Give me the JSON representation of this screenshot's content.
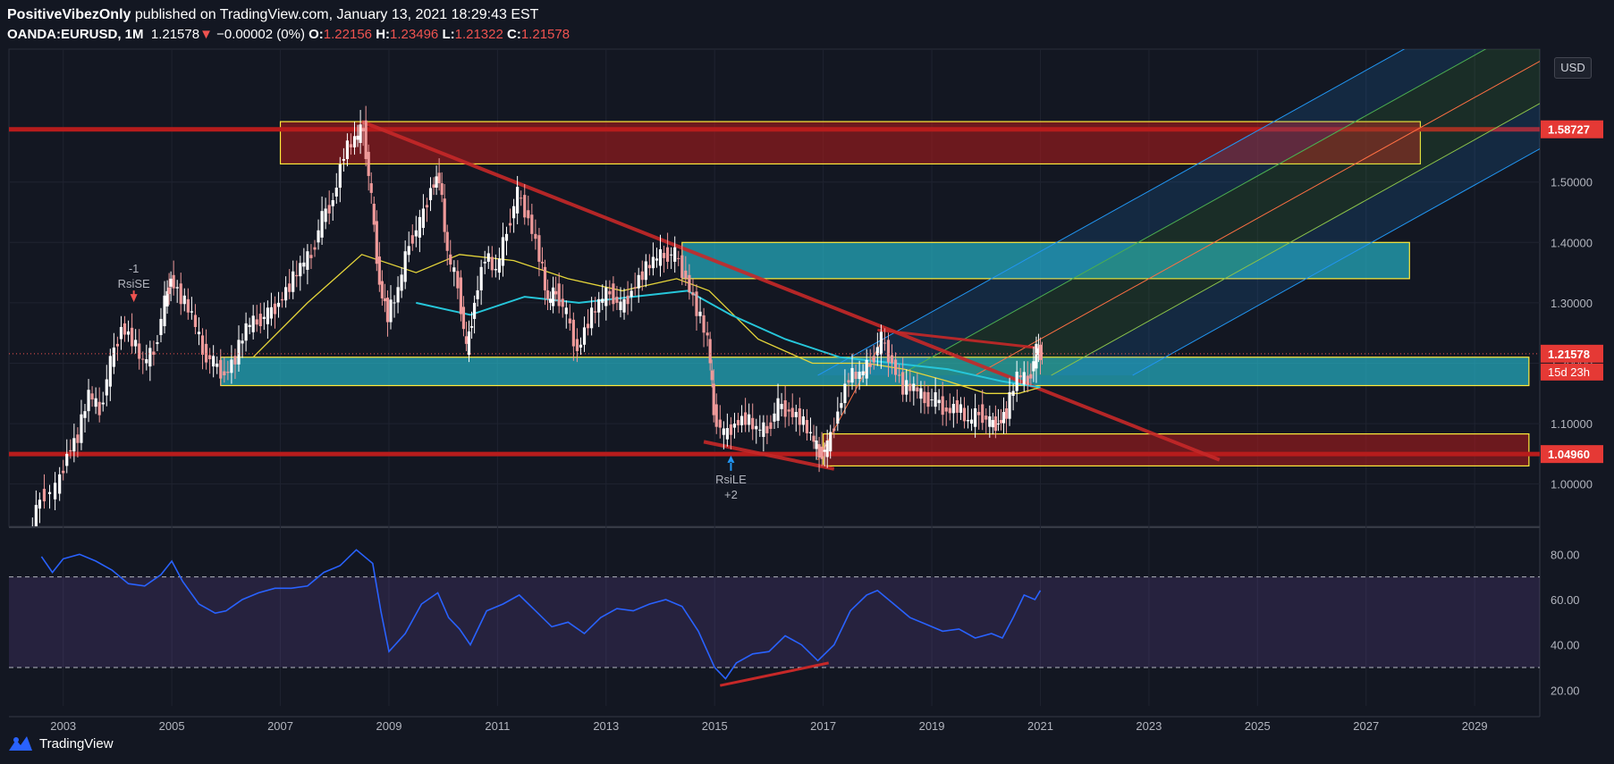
{
  "header": {
    "author": "PositiveVibezOnly",
    "published_text": "published on TradingView.com, January 13, 2021 18:29:43 EST",
    "symbol": "OANDA:EURUSD,",
    "interval": "1M",
    "last": "1.21578",
    "change": "−0.00002 (0%)",
    "o_label": "O:",
    "o": "1.22156",
    "h_label": "H:",
    "h": "1.23496",
    "l_label": "L:",
    "l": "1.21322",
    "c_label": "C:",
    "c": "1.21578"
  },
  "currency": "USD",
  "footer": {
    "brand": "TradingView"
  },
  "colors": {
    "background": "#131722",
    "up_candle": "#ffffff",
    "down_candle": "#ef9a9a",
    "rsi_line": "#2962ff",
    "rsi_band": "#7e57c2",
    "support_red": "#b71c1c",
    "zone_teal": "#26c6da",
    "zone_yellow_border": "#ffeb3b",
    "ma_yellow": "#e5d53a",
    "ma_cyan": "#26c6da"
  },
  "chart_data": {
    "type": "candlestick",
    "symbol": "OANDA:EURUSD",
    "interval": "1M",
    "price_axis": {
      "ticks": [
        "1.50000",
        "1.40000",
        "1.30000",
        "1.20000",
        "1.10000",
        "1.00000"
      ],
      "ylim": [
        0.93,
        1.72
      ],
      "scale": "linear"
    },
    "time_axis": {
      "ticks": [
        "2003",
        "2005",
        "2007",
        "2009",
        "2011",
        "2013",
        "2015",
        "2017",
        "2019",
        "2021",
        "2023",
        "2025",
        "2027",
        "2029"
      ],
      "xlim": [
        2002.0,
        2030.2
      ]
    },
    "price_labels": [
      {
        "value": "1.58727",
        "price": 1.58727
      },
      {
        "value": "1.21578",
        "price": 1.21578,
        "sub": "15d 23h"
      },
      {
        "value": "1.04960",
        "price": 1.0496
      }
    ],
    "close_series": [
      [
        2002.4,
        0.9
      ],
      [
        2002.6,
        0.98
      ],
      [
        2002.9,
        0.99
      ],
      [
        2003.1,
        1.05
      ],
      [
        2003.3,
        1.08
      ],
      [
        2003.5,
        1.15
      ],
      [
        2003.7,
        1.12
      ],
      [
        2003.9,
        1.2
      ],
      [
        2004.1,
        1.26
      ],
      [
        2004.3,
        1.24
      ],
      [
        2004.5,
        1.2
      ],
      [
        2004.7,
        1.22
      ],
      [
        2004.9,
        1.3
      ],
      [
        2005.0,
        1.34
      ],
      [
        2005.2,
        1.31
      ],
      [
        2005.4,
        1.28
      ],
      [
        2005.6,
        1.22
      ],
      [
        2005.8,
        1.2
      ],
      [
        2006.0,
        1.18
      ],
      [
        2006.2,
        1.21
      ],
      [
        2006.4,
        1.26
      ],
      [
        2006.6,
        1.27
      ],
      [
        2006.8,
        1.28
      ],
      [
        2007.0,
        1.3
      ],
      [
        2007.2,
        1.33
      ],
      [
        2007.4,
        1.36
      ],
      [
        2007.6,
        1.38
      ],
      [
        2007.8,
        1.44
      ],
      [
        2008.0,
        1.47
      ],
      [
        2008.2,
        1.55
      ],
      [
        2008.4,
        1.57
      ],
      [
        2008.55,
        1.59
      ],
      [
        2008.7,
        1.47
      ],
      [
        2008.85,
        1.33
      ],
      [
        2009.0,
        1.28
      ],
      [
        2009.2,
        1.32
      ],
      [
        2009.4,
        1.4
      ],
      [
        2009.6,
        1.43
      ],
      [
        2009.8,
        1.49
      ],
      [
        2009.95,
        1.51
      ],
      [
        2010.1,
        1.38
      ],
      [
        2010.3,
        1.33
      ],
      [
        2010.45,
        1.22
      ],
      [
        2010.6,
        1.3
      ],
      [
        2010.8,
        1.38
      ],
      [
        2011.0,
        1.35
      ],
      [
        2011.2,
        1.42
      ],
      [
        2011.4,
        1.48
      ],
      [
        2011.6,
        1.44
      ],
      [
        2011.8,
        1.38
      ],
      [
        2011.95,
        1.3
      ],
      [
        2012.1,
        1.32
      ],
      [
        2012.3,
        1.28
      ],
      [
        2012.5,
        1.22
      ],
      [
        2012.7,
        1.27
      ],
      [
        2012.9,
        1.3
      ],
      [
        2013.1,
        1.32
      ],
      [
        2013.3,
        1.29
      ],
      [
        2013.5,
        1.32
      ],
      [
        2013.7,
        1.35
      ],
      [
        2013.9,
        1.37
      ],
      [
        2014.1,
        1.38
      ],
      [
        2014.3,
        1.38
      ],
      [
        2014.5,
        1.34
      ],
      [
        2014.7,
        1.29
      ],
      [
        2014.9,
        1.24
      ],
      [
        2015.0,
        1.12
      ],
      [
        2015.2,
        1.08
      ],
      [
        2015.4,
        1.1
      ],
      [
        2015.6,
        1.11
      ],
      [
        2015.8,
        1.09
      ],
      [
        2016.0,
        1.09
      ],
      [
        2016.2,
        1.13
      ],
      [
        2016.4,
        1.12
      ],
      [
        2016.6,
        1.11
      ],
      [
        2016.8,
        1.08
      ],
      [
        2016.95,
        1.05
      ],
      [
        2017.1,
        1.06
      ],
      [
        2017.3,
        1.12
      ],
      [
        2017.5,
        1.18
      ],
      [
        2017.7,
        1.18
      ],
      [
        2017.9,
        1.2
      ],
      [
        2018.1,
        1.24
      ],
      [
        2018.3,
        1.2
      ],
      [
        2018.5,
        1.16
      ],
      [
        2018.7,
        1.16
      ],
      [
        2018.9,
        1.14
      ],
      [
        2019.1,
        1.14
      ],
      [
        2019.3,
        1.12
      ],
      [
        2019.5,
        1.13
      ],
      [
        2019.7,
        1.1
      ],
      [
        2019.9,
        1.12
      ],
      [
        2020.1,
        1.1
      ],
      [
        2020.25,
        1.1
      ],
      [
        2020.4,
        1.12
      ],
      [
        2020.6,
        1.18
      ],
      [
        2020.8,
        1.17
      ],
      [
        2020.95,
        1.22
      ],
      [
        2021.05,
        1.216
      ]
    ],
    "moving_averages": [
      {
        "color": "yellow",
        "points": [
          [
            2006.5,
            1.21
          ],
          [
            2007.5,
            1.3
          ],
          [
            2008.5,
            1.38
          ],
          [
            2009.5,
            1.35
          ],
          [
            2010.3,
            1.38
          ],
          [
            2011.3,
            1.37
          ],
          [
            2012.3,
            1.34
          ],
          [
            2013.3,
            1.32
          ],
          [
            2014.3,
            1.34
          ],
          [
            2014.9,
            1.32
          ],
          [
            2015.8,
            1.24
          ],
          [
            2016.8,
            1.2
          ],
          [
            2017.8,
            1.2
          ],
          [
            2018.5,
            1.19
          ],
          [
            2019.3,
            1.17
          ],
          [
            2020.0,
            1.15
          ],
          [
            2020.6,
            1.15
          ],
          [
            2021.0,
            1.16
          ]
        ]
      },
      {
        "color": "cyan",
        "points": [
          [
            2009.5,
            1.3
          ],
          [
            2010.5,
            1.28
          ],
          [
            2011.5,
            1.31
          ],
          [
            2012.5,
            1.3
          ],
          [
            2013.5,
            1.31
          ],
          [
            2014.5,
            1.32
          ],
          [
            2015.3,
            1.28
          ],
          [
            2016.3,
            1.24
          ],
          [
            2017.3,
            1.21
          ],
          [
            2018.3,
            1.2
          ],
          [
            2019.3,
            1.19
          ],
          [
            2020.3,
            1.17
          ],
          [
            2021.0,
            1.16
          ]
        ]
      }
    ],
    "zones": [
      {
        "kind": "resistance",
        "y_range": [
          1.53,
          1.6
        ],
        "x_range": [
          2007.0,
          2028.0
        ]
      },
      {
        "kind": "range",
        "y_range": [
          1.34,
          1.4
        ],
        "x_range": [
          2014.4,
          2027.8
        ]
      },
      {
        "kind": "support",
        "y_range": [
          1.163,
          1.21
        ],
        "x_range": [
          2005.9,
          2030.0
        ]
      },
      {
        "kind": "support",
        "y_range": [
          1.03,
          1.083
        ],
        "x_range": [
          2017.0,
          2030.0
        ]
      }
    ],
    "horizontal_levels": [
      1.58727,
      1.0496
    ],
    "annotations": [
      {
        "text_top": "-1",
        "text_bottom": "RsiSE",
        "x": 2004.3,
        "price": 1.35
      },
      {
        "text_top": "RsiLE",
        "text_bottom": "+2",
        "x": 2015.3,
        "price": 1.05
      }
    ],
    "rsi": {
      "ticks": [
        "80.00",
        "60.00",
        "40.00",
        "20.00"
      ],
      "ylim": [
        13,
        90
      ],
      "overbought": 70,
      "oversold": 30,
      "series": [
        [
          2002.6,
          79
        ],
        [
          2002.8,
          72
        ],
        [
          2003.0,
          78
        ],
        [
          2003.3,
          80
        ],
        [
          2003.6,
          77
        ],
        [
          2003.9,
          73
        ],
        [
          2004.2,
          67
        ],
        [
          2004.5,
          66
        ],
        [
          2004.8,
          71
        ],
        [
          2005.0,
          77
        ],
        [
          2005.2,
          68
        ],
        [
          2005.5,
          58
        ],
        [
          2005.8,
          54
        ],
        [
          2006.0,
          55
        ],
        [
          2006.3,
          60
        ],
        [
          2006.6,
          63
        ],
        [
          2006.9,
          65
        ],
        [
          2007.2,
          65
        ],
        [
          2007.5,
          66
        ],
        [
          2007.8,
          72
        ],
        [
          2008.1,
          75
        ],
        [
          2008.4,
          82
        ],
        [
          2008.7,
          76
        ],
        [
          2008.85,
          55
        ],
        [
          2009.0,
          37
        ],
        [
          2009.3,
          45
        ],
        [
          2009.6,
          58
        ],
        [
          2009.9,
          63
        ],
        [
          2010.1,
          52
        ],
        [
          2010.3,
          47
        ],
        [
          2010.5,
          40
        ],
        [
          2010.8,
          55
        ],
        [
          2011.1,
          58
        ],
        [
          2011.4,
          62
        ],
        [
          2011.7,
          55
        ],
        [
          2012.0,
          48
        ],
        [
          2012.3,
          50
        ],
        [
          2012.6,
          45
        ],
        [
          2012.9,
          52
        ],
        [
          2013.2,
          56
        ],
        [
          2013.5,
          55
        ],
        [
          2013.8,
          58
        ],
        [
          2014.1,
          60
        ],
        [
          2014.4,
          57
        ],
        [
          2014.7,
          46
        ],
        [
          2015.0,
          30
        ],
        [
          2015.2,
          25
        ],
        [
          2015.4,
          32
        ],
        [
          2015.7,
          36
        ],
        [
          2016.0,
          37
        ],
        [
          2016.3,
          44
        ],
        [
          2016.6,
          40
        ],
        [
          2016.9,
          33
        ],
        [
          2017.2,
          40
        ],
        [
          2017.5,
          55
        ],
        [
          2017.8,
          62
        ],
        [
          2018.0,
          64
        ],
        [
          2018.3,
          58
        ],
        [
          2018.6,
          52
        ],
        [
          2018.9,
          49
        ],
        [
          2019.2,
          46
        ],
        [
          2019.5,
          47
        ],
        [
          2019.8,
          43
        ],
        [
          2020.1,
          45
        ],
        [
          2020.3,
          43
        ],
        [
          2020.5,
          52
        ],
        [
          2020.7,
          62
        ],
        [
          2020.9,
          60
        ],
        [
          2021.0,
          64
        ]
      ]
    }
  }
}
